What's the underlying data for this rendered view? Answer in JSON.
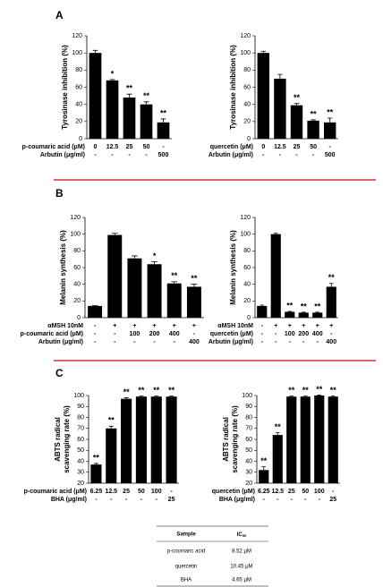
{
  "panel_labels": [
    "A",
    "B",
    "C"
  ],
  "chart_data": [
    {
      "type": "bar",
      "ylabel": [
        "Tyrosinase inhibition (%)"
      ],
      "ylim": [
        0,
        120
      ],
      "yticks": [
        0,
        20,
        40,
        60,
        80,
        100,
        120
      ],
      "color": "#000000",
      "values": [
        100,
        68,
        48,
        40,
        19
      ],
      "errors": [
        3,
        1,
        4,
        3,
        4
      ],
      "annotations": [
        null,
        "*",
        "**",
        "**",
        "**"
      ],
      "treatment_rows": [
        {
          "label": "p-coumaric acid (μM)",
          "values": [
            "0",
            "12.5",
            "25",
            "50",
            "-"
          ]
        },
        {
          "label": "Arbutin (μg/ml)",
          "values": [
            "-",
            "-",
            "-",
            "-",
            "500"
          ]
        }
      ]
    },
    {
      "type": "bar",
      "ylabel": [
        "Tyrosinase inhibition (%)"
      ],
      "ylim": [
        0,
        120
      ],
      "yticks": [
        0,
        20,
        40,
        60,
        80,
        100,
        120
      ],
      "color": "#000000",
      "values": [
        100,
        70,
        39,
        21,
        19
      ],
      "errors": [
        2,
        5,
        2,
        1,
        5
      ],
      "annotations": [
        null,
        null,
        "**",
        "**",
        "**"
      ],
      "treatment_rows": [
        {
          "label": "quercetin (μM)",
          "values": [
            "0",
            "12.5",
            "25",
            "50",
            "-"
          ]
        },
        {
          "label": "Arbutin (μg/ml)",
          "values": [
            "-",
            "-",
            "-",
            "-",
            "500"
          ]
        }
      ]
    },
    {
      "type": "bar",
      "ylabel": [
        "Melanin synthesis (%)"
      ],
      "ylim": [
        0,
        120
      ],
      "yticks": [
        0,
        20,
        40,
        60,
        80,
        100,
        120
      ],
      "color": "#000000",
      "values": [
        14,
        99,
        71,
        64,
        41,
        37
      ],
      "errors": [
        0.5,
        2,
        3,
        3,
        2,
        3
      ],
      "annotations": [
        null,
        null,
        null,
        "*",
        "**",
        "**"
      ],
      "treatment_rows": [
        {
          "label": "αMSH 10nM",
          "values": [
            "-",
            "+",
            "+",
            "+",
            "+",
            "+"
          ]
        },
        {
          "label": "p-coumaric acid (μM)",
          "values": [
            "-",
            "-",
            "100",
            "200",
            "400",
            "-"
          ]
        },
        {
          "label": "Arbutin (μg/ml)",
          "values": [
            "-",
            "-",
            "-",
            "-",
            "-",
            "400"
          ]
        }
      ]
    },
    {
      "type": "bar",
      "ylabel": [
        "Melanin synthesis (%)"
      ],
      "ylim": [
        0,
        120
      ],
      "yticks": [
        0,
        20,
        40,
        60,
        80,
        100,
        120
      ],
      "color": "#000000",
      "values": [
        14,
        100,
        7,
        6,
        6,
        37
      ],
      "errors": [
        1,
        1,
        0.5,
        0.5,
        0.5,
        4
      ],
      "annotations": [
        null,
        null,
        "**",
        "**",
        "**",
        "**"
      ],
      "treatment_rows": [
        {
          "label": "αMSH 10nM",
          "values": [
            "-",
            "+",
            "+",
            "+",
            "+",
            "+"
          ]
        },
        {
          "label": "quercetin (μM)",
          "values": [
            "-",
            "-",
            "100",
            "200",
            "400",
            "-"
          ]
        },
        {
          "label": "Arbutin (μg/ml)",
          "values": [
            "-",
            "-",
            "-",
            "-",
            "-",
            "400"
          ]
        }
      ]
    },
    {
      "type": "bar",
      "ylabel": [
        "ABTS radical",
        "scavenging rate (%)"
      ],
      "ylim": [
        20,
        100
      ],
      "yticks": [
        20,
        30,
        40,
        50,
        60,
        70,
        80,
        90,
        100
      ],
      "color": "#000000",
      "values": [
        37,
        70,
        97,
        99,
        99,
        99
      ],
      "errors": [
        1,
        2,
        1,
        0.5,
        0.5,
        0.5
      ],
      "annotations": [
        "**",
        "**",
        "**",
        "**",
        "**",
        "**"
      ],
      "treatment_rows": [
        {
          "label": "p-coumaric acid (μM)",
          "values": [
            "6.25",
            "12.5",
            "25",
            "50",
            "100",
            "-"
          ]
        },
        {
          "label": "BHA (μg/ml)",
          "values": [
            "-",
            "-",
            "-",
            "-",
            "-",
            "25"
          ]
        }
      ]
    },
    {
      "type": "bar",
      "ylabel": [
        "ABTS radical",
        "scavenging rate (%)"
      ],
      "ylim": [
        20,
        100
      ],
      "yticks": [
        20,
        30,
        40,
        50,
        60,
        70,
        80,
        90,
        100
      ],
      "color": "#000000",
      "values": [
        32,
        64,
        99,
        99,
        100,
        99
      ],
      "errors": [
        3,
        2,
        0.5,
        0.5,
        0.5,
        0.5
      ],
      "annotations": [
        "**",
        "**",
        "**",
        "**",
        "**",
        "**"
      ],
      "treatment_rows": [
        {
          "label": "quercetin (μM)",
          "values": [
            "6.25",
            "12.5",
            "25",
            "50",
            "100",
            "-"
          ]
        },
        {
          "label": "BHA (μg/ml)",
          "values": [
            "-",
            "-",
            "-",
            "-",
            "-",
            "25"
          ]
        }
      ]
    }
  ],
  "table": {
    "header": [
      {
        "text": "Sample"
      },
      {
        "text": "IC",
        "sub": "50"
      }
    ],
    "rows": [
      [
        "p-coumaric acid",
        "8.52 μM"
      ],
      [
        "quercetin",
        "10.45 μM"
      ],
      [
        "BHA",
        "4.65 μM"
      ]
    ]
  }
}
